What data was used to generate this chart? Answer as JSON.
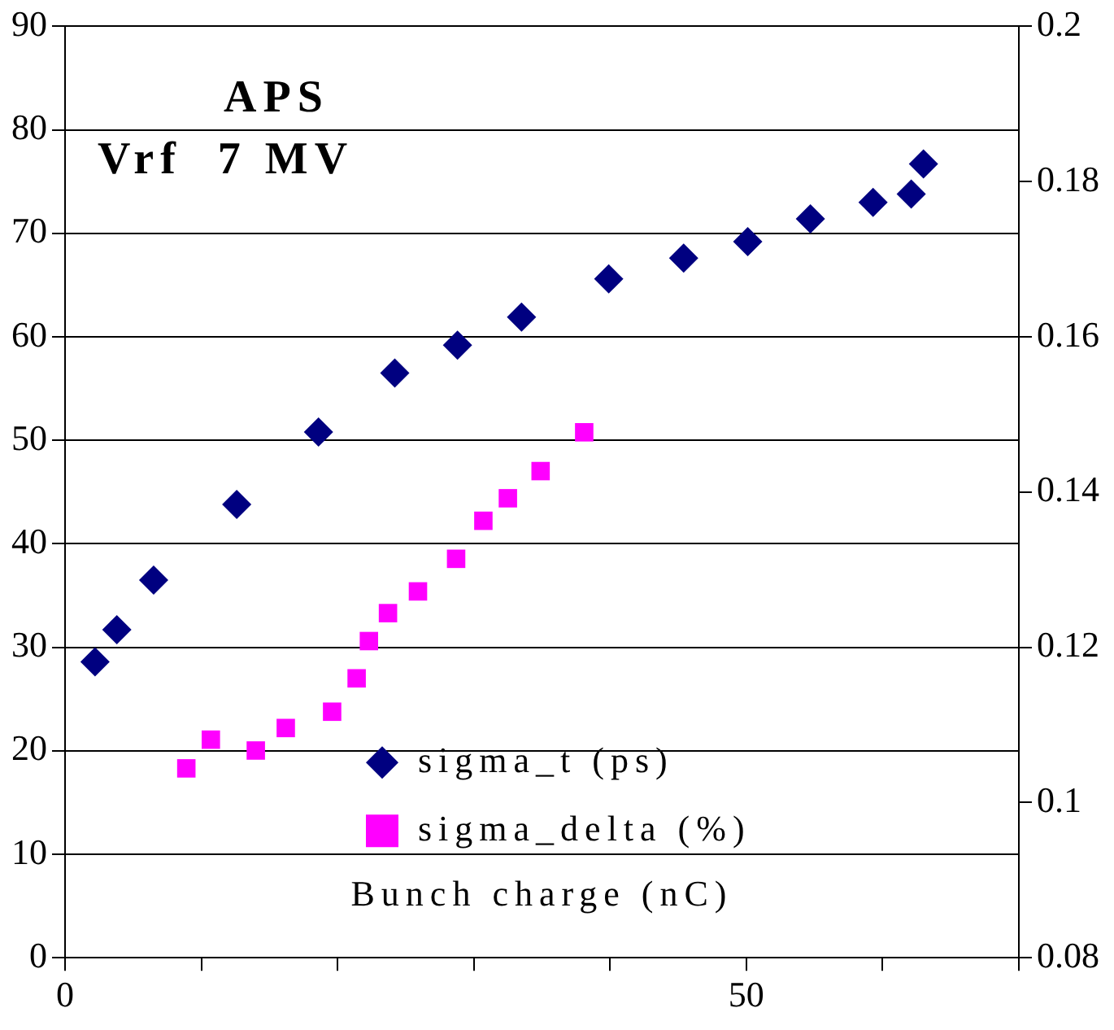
{
  "chart_data": {
    "type": "scatter",
    "xlabel": "Bunch charge (nC)",
    "annotations": [
      "APS",
      "Vrf  7 MV"
    ],
    "xlim": [
      0,
      70
    ],
    "xticks": [
      0,
      {
        "value": 10,
        "label": null
      },
      {
        "value": 20,
        "label": null
      },
      {
        "value": 30,
        "label": null
      },
      {
        "value": 40,
        "label": null
      },
      50,
      {
        "value": 60,
        "label": null
      },
      {
        "value": 70,
        "label": null
      }
    ],
    "ylim": [
      0,
      90
    ],
    "yticks": [
      0,
      10,
      20,
      30,
      40,
      50,
      60,
      70,
      80,
      90
    ],
    "y2lim": [
      0.08,
      0.2
    ],
    "y2ticks": [
      0.08,
      0.1,
      0.12,
      0.14,
      0.16,
      0.18,
      0.2
    ],
    "grid": "y",
    "legend": "bottom right",
    "series": [
      {
        "name": "sigma_t (ps)",
        "color": "#000080",
        "marker": "diamond",
        "x": [
          2.2,
          3.8,
          6.5,
          12.6,
          18.6,
          24.2,
          28.8,
          33.5,
          39.9,
          45.4,
          50.1,
          54.7,
          59.3,
          62.1,
          63
        ],
        "values": [
          28.6,
          31.7,
          36.5,
          43.8,
          50.8,
          56.5,
          59.2,
          61.9,
          65.6,
          67.6,
          69.2,
          71.4,
          73,
          73.8,
          76.7
        ]
      },
      {
        "name": "sigma_delta (%)",
        "color": "#ff00ff",
        "marker": "square",
        "axis": "y2",
        "x": [
          8.9,
          10.7,
          14,
          16.2,
          19.6,
          21.4,
          22.3,
          23.7,
          25.9,
          28.7,
          30.7,
          32.5,
          34.9,
          38.1
        ],
        "values": [
          0.1044,
          0.1081,
          0.1067,
          0.1096,
          0.1117,
          0.116,
          0.1208,
          0.1244,
          0.1272,
          0.1314,
          0.1363,
          0.1392,
          0.1427,
          0.1477
        ]
      }
    ]
  }
}
